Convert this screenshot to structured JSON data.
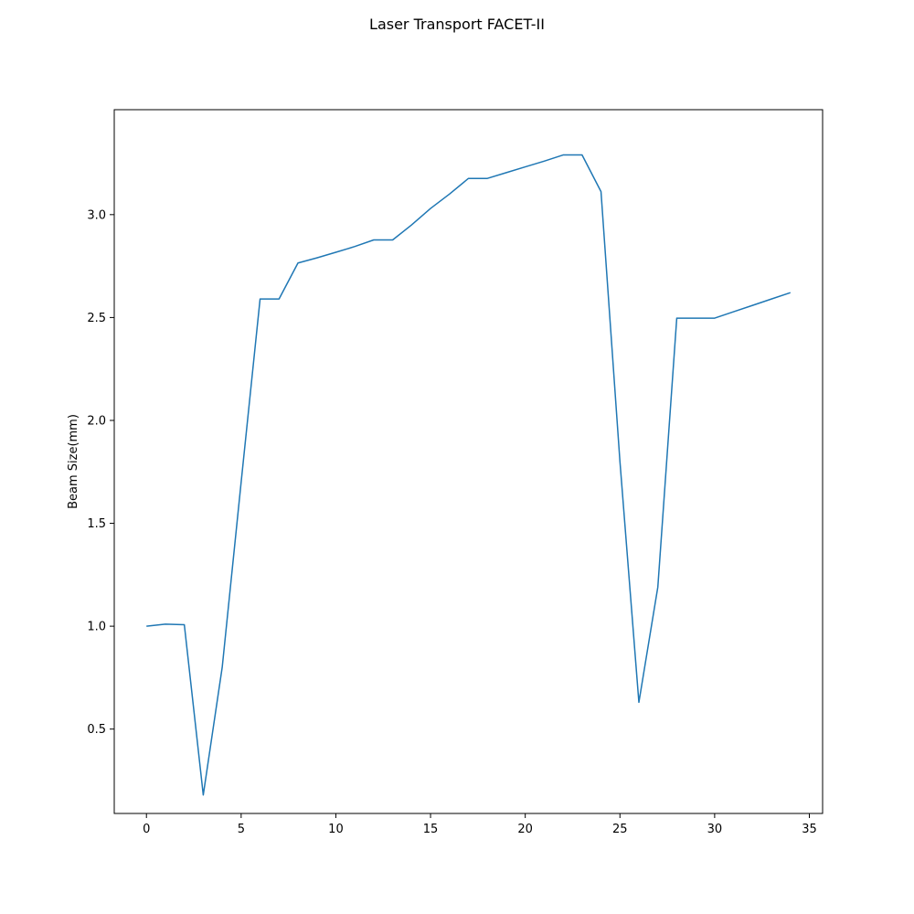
{
  "chart_data": {
    "type": "line",
    "title": "Laser Transport FACET-II",
    "xlabel": "",
    "ylabel": "Beam Size(mm)",
    "xlim": [
      -1.7,
      35.7
    ],
    "ylim": [
      0.09,
      3.51
    ],
    "xticks": [
      0,
      5,
      10,
      15,
      20,
      25,
      30,
      35
    ],
    "xtick_labels": [
      "0",
      "5",
      "10",
      "15",
      "20",
      "25",
      "30",
      "35"
    ],
    "yticks": [
      0.5,
      1.0,
      1.5,
      2.0,
      2.5,
      3.0
    ],
    "ytick_labels": [
      "0.5",
      "1.0",
      "1.5",
      "2.0",
      "2.5",
      "3.0"
    ],
    "grid": false,
    "series": [
      {
        "color": "#1f77b4",
        "x": [
          0,
          1,
          2,
          3,
          4,
          5,
          6,
          7,
          8,
          9,
          10,
          11,
          12,
          13,
          14,
          15,
          16,
          17,
          18,
          19,
          20,
          21,
          22,
          23,
          24,
          25,
          26,
          27,
          28,
          29,
          30,
          31,
          32,
          33,
          34
        ],
        "y": [
          1.0,
          1.01,
          1.007,
          0.18,
          0.8,
          1.7,
          2.59,
          2.59,
          2.765,
          2.79,
          2.817,
          2.845,
          2.877,
          2.877,
          2.95,
          3.03,
          3.1,
          3.176,
          3.176,
          3.204,
          3.232,
          3.26,
          3.29,
          3.29,
          3.112,
          1.8,
          0.63,
          1.19,
          2.497,
          2.497,
          2.497,
          2.528,
          2.559,
          2.59,
          2.621
        ]
      }
    ]
  }
}
